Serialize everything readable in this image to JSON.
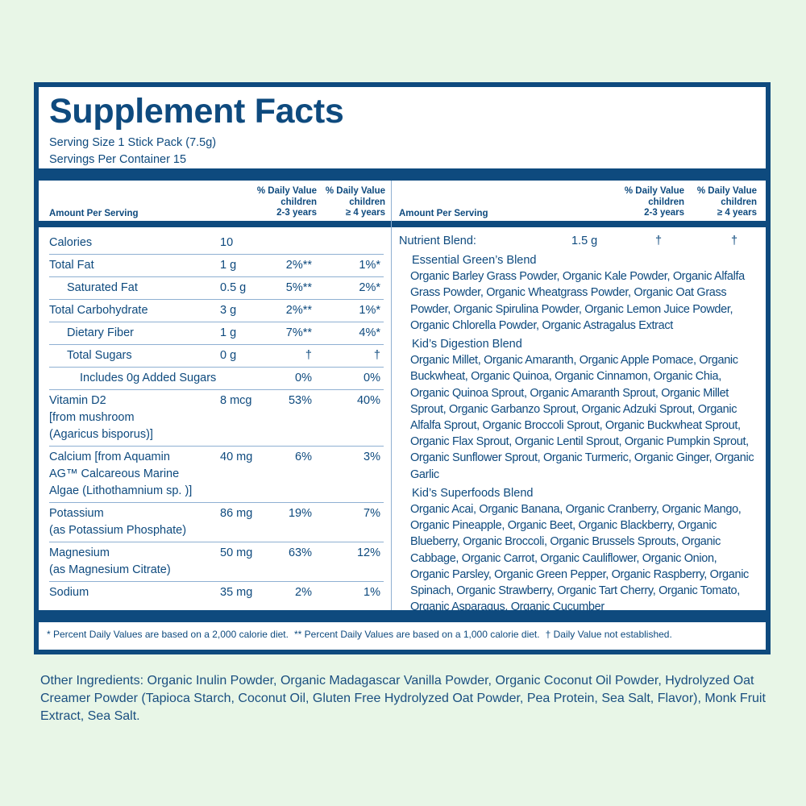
{
  "header": {
    "title": "Supplement Facts",
    "serving_size": "Serving Size 1 Stick Pack (7.5g)",
    "servings_per_container": "Servings Per Container 15"
  },
  "columns": {
    "amount": "Amount Per Serving",
    "dv_2_3": [
      "% Daily Value",
      "children",
      "2-3 years"
    ],
    "dv_4": [
      "% Daily Value",
      "children",
      "≥ 4 years"
    ]
  },
  "left_rows": [
    {
      "name": [
        "Calories"
      ],
      "amount": "10"
    },
    {
      "name": [
        "Total Fat"
      ],
      "amount": "1 g",
      "dv": [
        "2%**",
        "1%*"
      ]
    },
    {
      "name": [
        "Saturated Fat"
      ],
      "amount": "0.5 g",
      "dv": [
        "5%**",
        "2%*"
      ]
    },
    {
      "name": [
        "Total Carbohydrate"
      ],
      "amount": "3 g",
      "dv": [
        "2%**",
        "1%*"
      ]
    },
    {
      "name": [
        "Dietary Fiber"
      ],
      "amount": "1 g",
      "dv": [
        "7%**",
        "4%*"
      ]
    },
    {
      "name": [
        "Total Sugars"
      ],
      "amount": "0 g",
      "dv": [
        "†",
        "†"
      ]
    },
    {
      "name": [
        "Includes 0g Added Sugars"
      ],
      "dv": [
        "0%",
        "0%"
      ]
    },
    {
      "name": [
        "Vitamin D2",
        "[from mushroom",
        "(Agaricus bisporus)]"
      ],
      "amount": "8 mcg",
      "dv": [
        "53%",
        "40%"
      ]
    },
    {
      "name": [
        "Calcium [from Aquamin",
        "AG™ Calcareous Marine",
        "Algae (Lithothamnium sp. )]"
      ],
      "amount": "40 mg",
      "dv": [
        "6%",
        "3%"
      ]
    },
    {
      "name": [
        "Potassium",
        "(as Potassium Phosphate)"
      ],
      "amount": "86 mg",
      "dv": [
        "19%",
        "7%"
      ]
    },
    {
      "name": [
        "Magnesium",
        "(as Magnesium Citrate)"
      ],
      "amount": "50 mg",
      "dv": [
        "63%",
        "12%"
      ]
    },
    {
      "name": [
        "Sodium"
      ],
      "amount": "35 mg",
      "dv": [
        "2%",
        "1%"
      ]
    }
  ],
  "nutrient_blend": {
    "name": "Nutrient Blend:",
    "amount": "1.5 g",
    "dv": [
      "†",
      "†"
    ],
    "blends": [
      {
        "name": "Essential Green’s Blend",
        "ingredients": "Organic Barley Grass Powder, Organic Kale Powder, Organic Alfalfa Grass Powder, Organic Wheatgrass Powder, Organic Oat Grass Powder, Organic Spirulina Powder, Organic Lemon Juice Powder, Organic Chlorella Powder, Organic Astragalus Extract"
      },
      {
        "name": "Kid’s Digestion Blend",
        "ingredients": "Organic Millet, Organic Amaranth, Organic Apple Pomace, Organic Buckwheat, Organic Quinoa, Organic Cinnamon, Organic Chia, Organic Quinoa Sprout, Organic Amaranth Sprout, Organic Millet Sprout, Organic Garbanzo Sprout, Organic Adzuki Sprout, Organic Alfalfa Sprout, Organic Broccoli Sprout, Organic Buckwheat Sprout, Organic Flax Sprout, Organic Lentil Sprout, Organic Pumpkin Sprout, Organic Sunflower Sprout, Organic Turmeric, Organic Ginger, Organic Garlic"
      },
      {
        "name": "Kid’s Superfoods Blend",
        "ingredients": "Organic Acai, Organic Banana, Organic Cranberry, Organic Mango, Organic Pineapple, Organic Beet, Organic Blackberry, Organic Blueberry, Organic Broccoli, Organic Brussels Sprouts, Organic Cabbage, Organic Carrot, Organic Cauliflower, Organic Onion, Organic Parsley, Organic Green Pepper, Organic Raspberry, Organic Spinach, Organic Strawberry, Organic Tart Cherry, Organic Tomato, Organic Asparagus, Organic Cucumber"
      }
    ]
  },
  "footnotes": [
    "* Percent Daily Values are based on a 2,000 calorie diet.",
    "** Percent Daily Values are based on a 1,000 calorie diet.",
    "† Daily Value not established."
  ],
  "other_ingredients": "Other Ingredients: Organic Inulin Powder, Organic Madagascar Vanilla Powder, Organic Coconut Oil Powder, Hydrolyzed Oat Creamer Powder (Tapioca Starch, Coconut Oil,  Gluten Free Hydrolyzed Oat Powder, Pea Protein, Sea Salt, Flavor), Monk Fruit Extract, Sea Salt."
}
